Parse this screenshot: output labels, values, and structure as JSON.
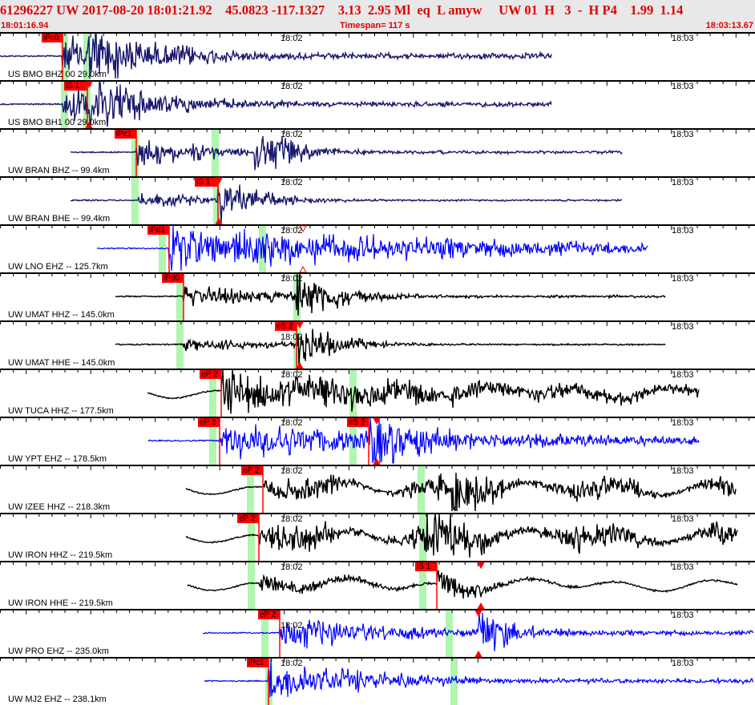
{
  "header": {
    "title": "61296227 UW 2017-08-20 18:01:21.92    45.0823 -117.1327    3.13  2.95 Ml  eq  L amyw     UW 01  H   3  -  H P4    1.99  1.14",
    "start_time": "18:01:16.94",
    "timespan": "Timespan= 117 s",
    "end_time": "18:03:13.67"
  },
  "time_marks": [
    "18:02",
    "18:03"
  ],
  "colors": {
    "header_text": "#e00000",
    "pick": "#ff0000",
    "window": "#b0f5b0",
    "navy": "#1a1a6e",
    "blue": "#0000ff",
    "black": "#000000"
  },
  "traces": [
    {
      "label": "US BMO BHZ 00 29.0km",
      "color": "#1a1a6e",
      "picks": [
        {
          "label": "iPc0"
        }
      ]
    },
    {
      "label": "US BMO BH1 00 29.0km",
      "color": "#1a1a6e",
      "picks": [
        {
          "label": "iS 1"
        }
      ]
    },
    {
      "label": "UW BRAN BHZ -- 99.4km",
      "color": "#1a1a6e",
      "picks": [
        {
          "label": "iPc1"
        }
      ]
    },
    {
      "label": "UW BRAN BHE -- 99.4km",
      "color": "#1a1a6e",
      "picks": [
        {
          "label": "iS 1"
        }
      ]
    },
    {
      "label": "UW LNO EHZ -- 125.7km",
      "color": "#0000ff",
      "picks": [
        {
          "label": "iPd1"
        }
      ]
    },
    {
      "label": "UW UMAT HHZ -- 145.0km",
      "color": "#000000",
      "picks": [
        {
          "label": "iPd0"
        }
      ]
    },
    {
      "label": "UW UMAT HHE -- 145.0km",
      "color": "#000000",
      "picks": [
        {
          "label": "eS 2"
        }
      ]
    },
    {
      "label": "UW TUCA HHZ -- 177.5km",
      "color": "#000000",
      "picks": [
        {
          "label": "eP 2"
        }
      ]
    },
    {
      "label": "UW YPT EHZ -- 178.5km",
      "color": "#0000ff",
      "picks": [
        {
          "label": "eP 2"
        },
        {
          "label": "eS 2"
        }
      ]
    },
    {
      "label": "UW IZEE HHZ -- 218.3km",
      "color": "#000000",
      "picks": [
        {
          "label": "eP 2"
        }
      ]
    },
    {
      "label": "UW IRON HHZ -- 219.5km",
      "color": "#000000",
      "picks": [
        {
          "label": "eP 2"
        }
      ]
    },
    {
      "label": "UW IRON HHE -- 219.5km",
      "color": "#000000",
      "picks": [
        {
          "label": "iS 1"
        }
      ]
    },
    {
      "label": "UW PRO EHZ -- 235.0km",
      "color": "#0000ff",
      "picks": [
        {
          "label": "eP 2"
        }
      ]
    },
    {
      "label": "UW MJ2 EHZ -- 238.1km",
      "color": "#0000ff",
      "picks": [
        {
          "label": "iPc1"
        }
      ]
    }
  ]
}
